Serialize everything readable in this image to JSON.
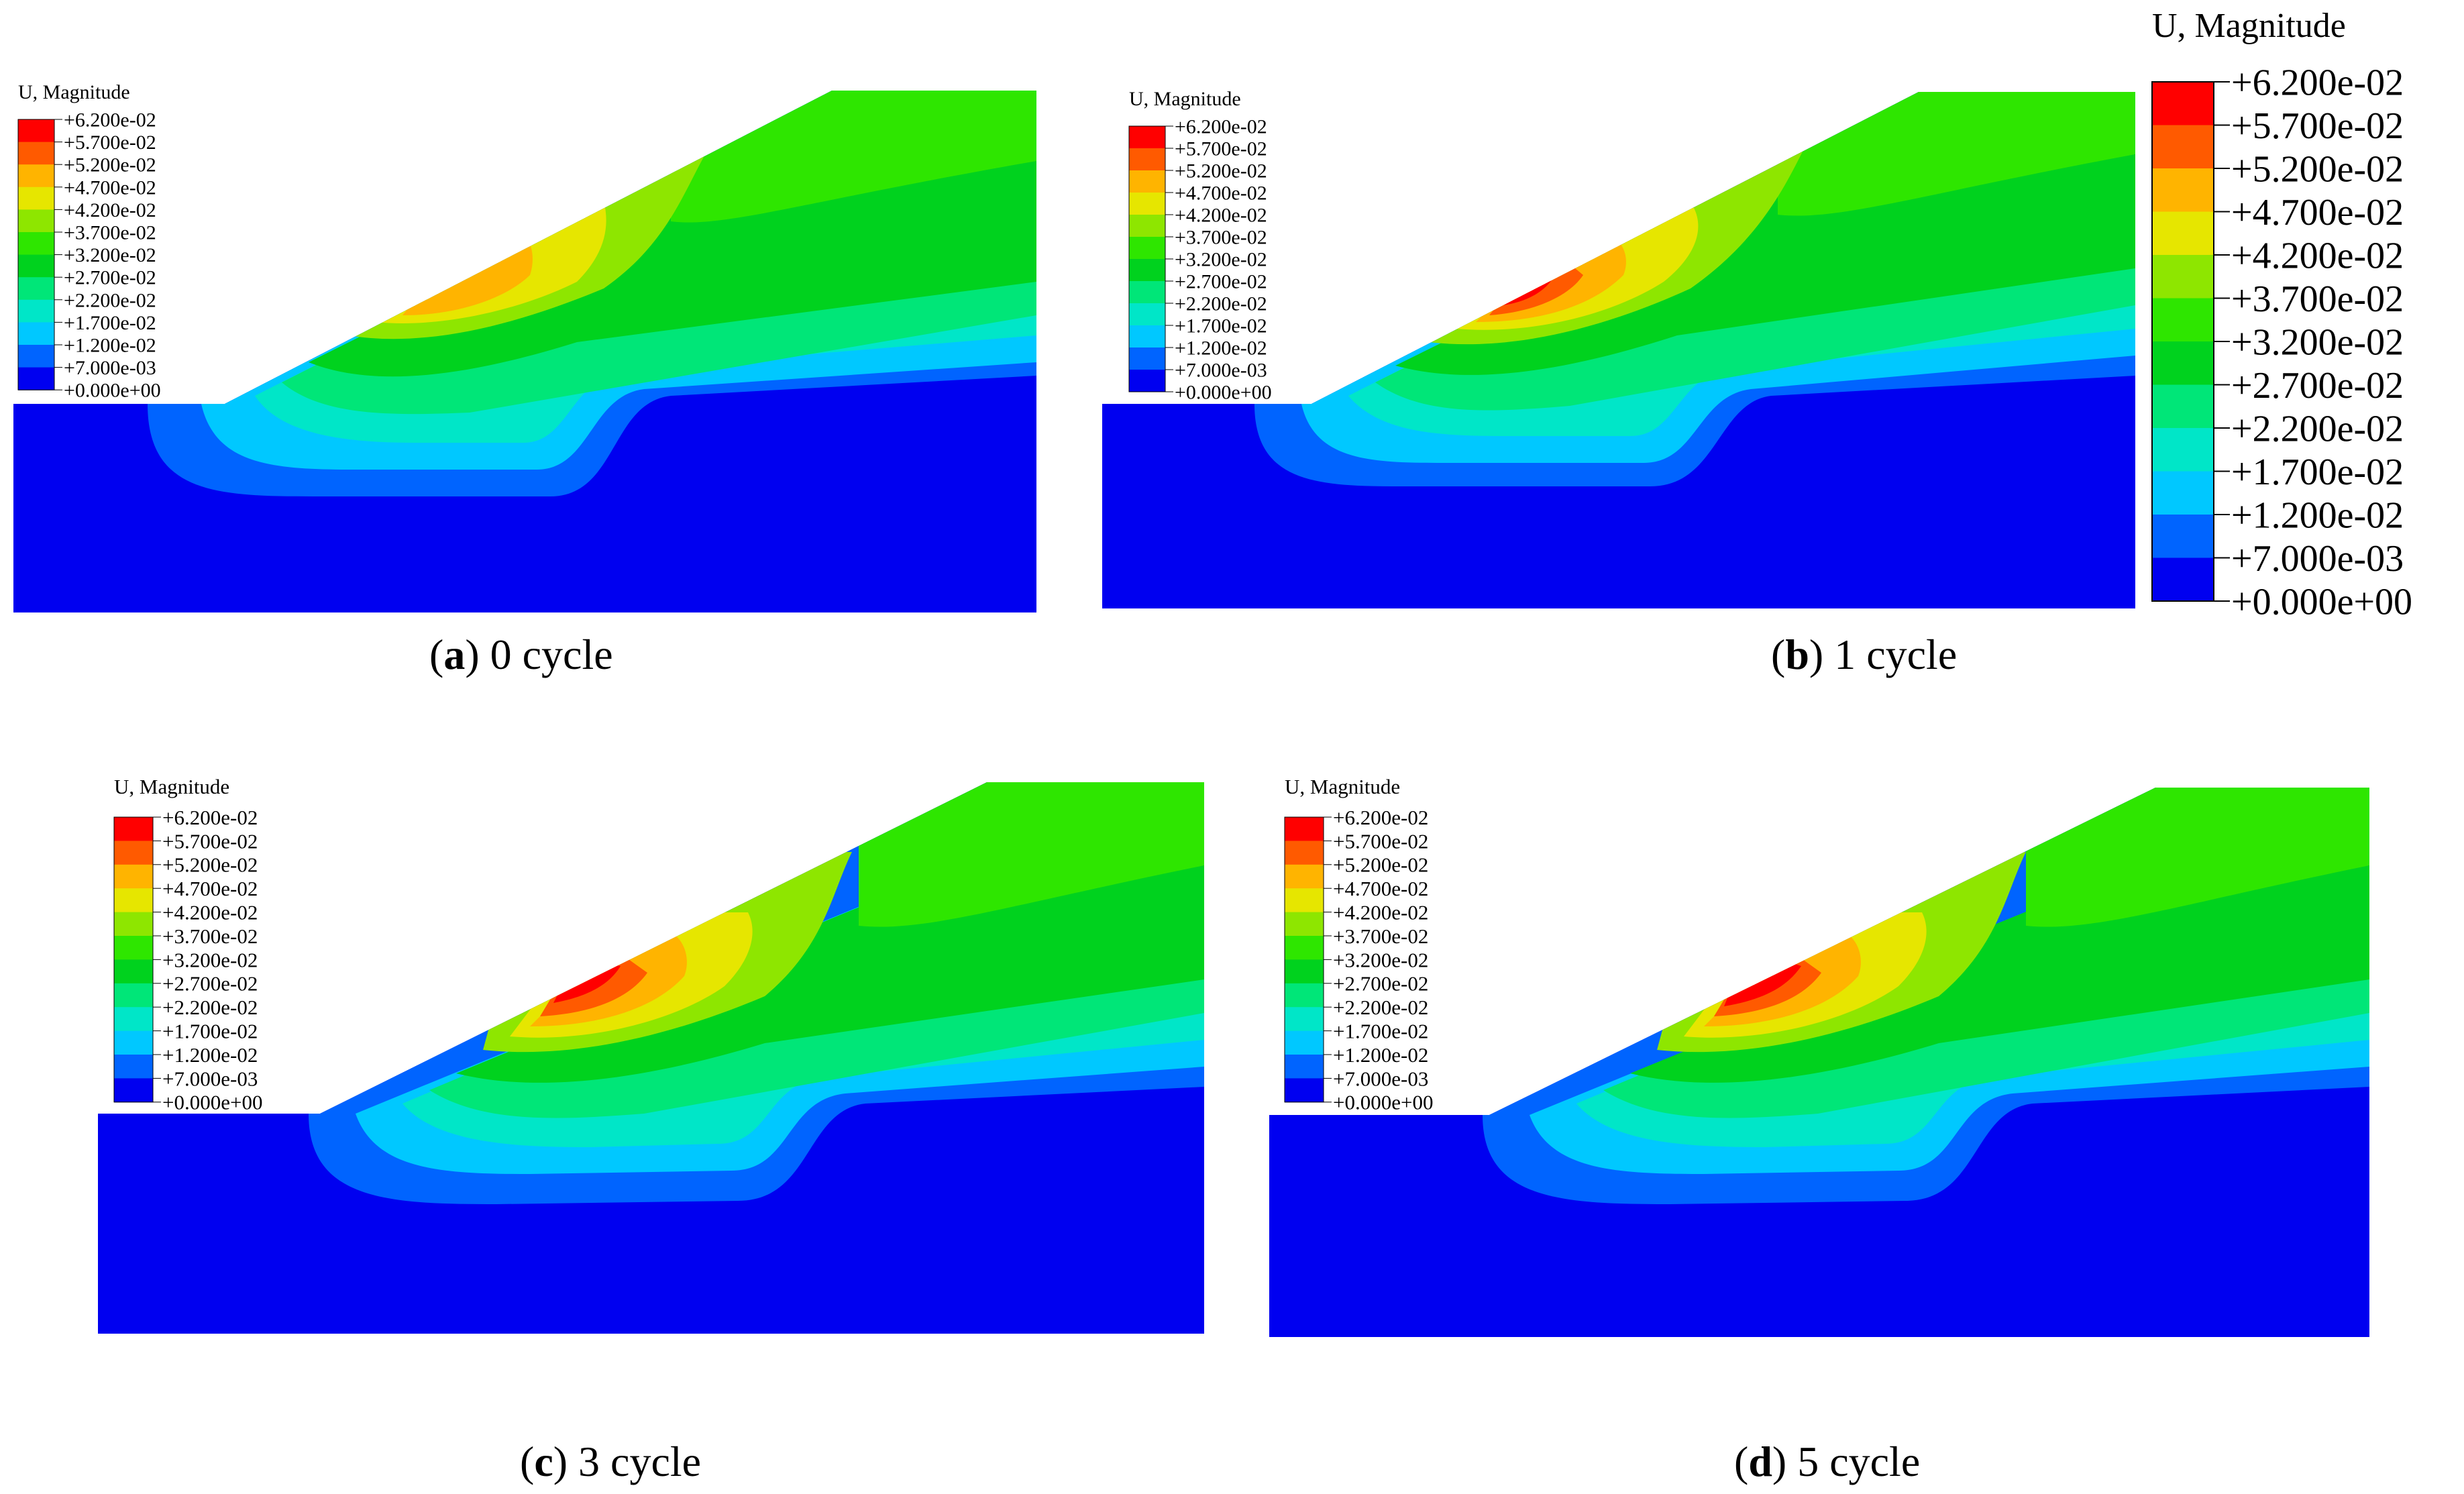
{
  "figure": {
    "legend_title": "U, Magnitude",
    "legend_values": [
      "+6.200e-02",
      "+5.700e-02",
      "+5.200e-02",
      "+4.700e-02",
      "+4.200e-02",
      "+3.700e-02",
      "+3.200e-02",
      "+2.700e-02",
      "+2.200e-02",
      "+1.700e-02",
      "+1.200e-02",
      "+7.000e-03",
      "+0.000e+00"
    ],
    "legend_colors": [
      "#ff0000",
      "#ff5a00",
      "#ffb400",
      "#e6e600",
      "#8ee600",
      "#2ee600",
      "#00d21e",
      "#00e678",
      "#00e6c8",
      "#00c8ff",
      "#0064ff",
      "#0000f0"
    ],
    "panels": [
      {
        "id": "a",
        "label": "a",
        "text": " 0 cycle"
      },
      {
        "id": "b",
        "label": "b",
        "text": " 1 cycle"
      },
      {
        "id": "c",
        "label": "c",
        "text": " 3 cycle"
      },
      {
        "id": "d",
        "label": "d",
        "text": " 5 cycle"
      }
    ]
  }
}
